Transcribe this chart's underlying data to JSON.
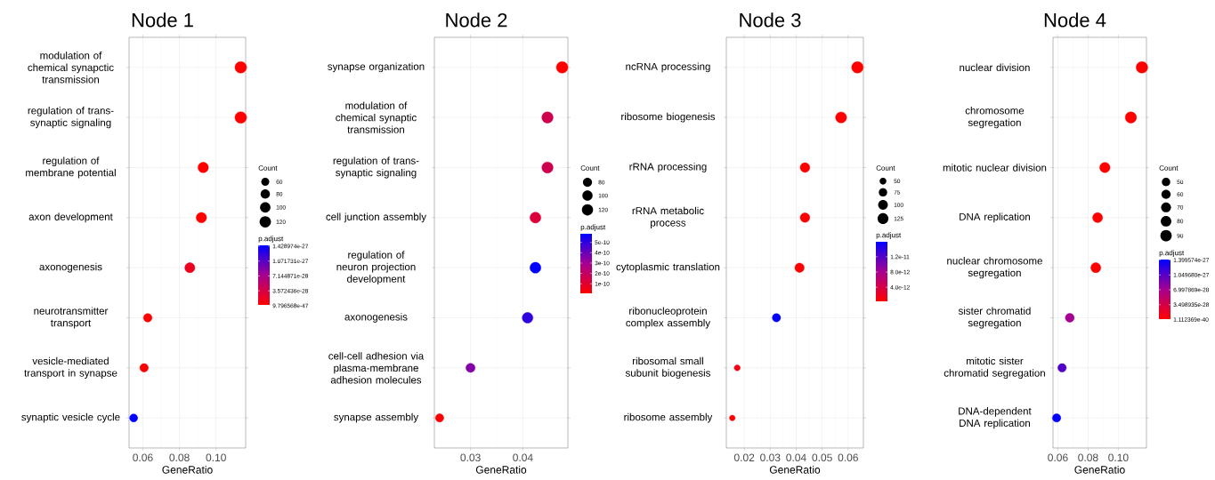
{
  "chart_data": [
    {
      "type": "bubble",
      "orientation": "horizontal",
      "title": "Node 1",
      "xlabel": "GeneRatio",
      "legend_title": "Count",
      "clabel": "p.adjust",
      "grid": true,
      "marker": "circle",
      "categories": [
        "modulation of chemical synapctic transmission",
        "regulation of trans-synaptic signaling",
        "regulation of membrane potential",
        "axon development",
        "axonogenesis",
        "neurotransmitter transport",
        "vesicle-mediated transport in synapse",
        "synaptic vesicle cycle"
      ],
      "values": [
        0.1135,
        0.1135,
        0.093,
        0.092,
        0.0857,
        0.0627,
        0.0607,
        0.055
      ],
      "sizes": [
        124,
        124,
        101,
        100,
        93,
        68,
        66,
        60
      ],
      "cvalues": [
        9.796568e-47,
        1e-45,
        1e-35,
        1e-38,
        1.4e-28,
        1e-30,
        1e-29,
        1.428974e-27
      ],
      "size_legend": [
        60,
        80,
        100,
        120
      ],
      "xlim": [
        0.0525,
        0.1162
      ],
      "xticks": [
        0.06,
        0.08,
        {
          "value": 0.1,
          "label": "0.10"
        }
      ],
      "clim": [
        9.796568e-47,
        1.428974e-27
      ],
      "cticks": [
        {
          "value": 9.796568e-47,
          "label": "9.796568e-47"
        },
        {
          "value": 3.572436e-28,
          "label": "3.572436e-28"
        },
        {
          "value": 7.144871e-28,
          "label": "7.144871e-28"
        },
        {
          "value": 1.071731e-27,
          "label": "1.071731e-27"
        },
        {
          "value": 1.428974e-27,
          "label": "1.428974e-27"
        }
      ]
    },
    {
      "type": "bubble",
      "orientation": "horizontal",
      "title": "Node 2",
      "xlabel": "GeneRatio",
      "legend_title": "Count",
      "clabel": "p.adjust",
      "grid": true,
      "marker": "circle",
      "categories": [
        "synapse organization",
        "modulation of chemical synaptic transmission",
        "regulation of trans-synaptic signaling",
        "cell junction assembly",
        "regulation of neuron projection development",
        "axonogenesis",
        "cell-cell adhesion via plasma-membrane adhesion molecules",
        "synapse assembly"
      ],
      "values": [
        0.0475,
        0.0447,
        0.0447,
        0.0424,
        0.0424,
        0.0409,
        0.03,
        0.0241
      ],
      "sizes": [
        128,
        121,
        121,
        114,
        114,
        110,
        81,
        65
      ],
      "cvalues": [
        5e-12,
        1.6e-10,
        1.6e-10,
        1.2e-10,
        5.8e-10,
        5e-10,
        3.5e-10,
        1e-11
      ],
      "size_legend": [
        80,
        100,
        120
      ],
      "xlim": [
        0.0231,
        0.0486
      ],
      "xticks": [
        0.03,
        0.04
      ],
      "clim": [
        5e-12,
        5.8e-10
      ],
      "cticks": [
        {
          "value": 1e-10,
          "label": "1e-10"
        },
        {
          "value": 2e-10,
          "label": "2e-10"
        },
        {
          "value": 3e-10,
          "label": "3e-10"
        },
        {
          "value": 4e-10,
          "label": "4e-10"
        },
        {
          "value": 5e-10,
          "label": "5e-10"
        }
      ]
    },
    {
      "type": "bubble",
      "orientation": "horizontal",
      "title": "Node 3",
      "xlabel": "GeneRatio",
      "legend_title": "Count",
      "clabel": "p.adjust",
      "grid": true,
      "marker": "circle",
      "categories": [
        "ncRNA processing",
        "ribosome biogenesis",
        "rRNA processing",
        "rRNA metabolic process",
        "cytoplasmic translation",
        "ribonucleoprotein complex assembly",
        "ribosomal small subunit biogenesis",
        "ribosome assembly"
      ],
      "values": [
        0.0636,
        0.0573,
        0.0434,
        0.0434,
        0.0413,
        0.0324,
        0.0173,
        0.0154
      ],
      "sizes": [
        144,
        130,
        99,
        99,
        94,
        74,
        39,
        35
      ],
      "cvalues": [
        1e-13,
        2e-13,
        3e-13,
        3e-13,
        2e-13,
        1.57e-11,
        1e-12,
        3e-13
      ],
      "size_legend": [
        50,
        75,
        100,
        125
      ],
      "xlim": [
        0.0131,
        0.0659
      ],
      "xticks": [
        0.02,
        0.03,
        0.04,
        0.05,
        0.06
      ],
      "clim": [
        1e-13,
        1.57e-11
      ],
      "cticks": [
        {
          "value": 4e-12,
          "label": "4.0e-12"
        },
        {
          "value": 8e-12,
          "label": "8.0e-12"
        },
        {
          "value": 1.2e-11,
          "label": "1.2e-11"
        }
      ]
    },
    {
      "type": "bubble",
      "orientation": "horizontal",
      "title": "Node 4",
      "xlabel": "GeneRatio",
      "legend_title": "Count",
      "clabel": "p.adjust",
      "grid": true,
      "marker": "circle",
      "categories": [
        "nuclear division",
        "chromosome segregation",
        "mitotic nuclear division",
        "DNA replication",
        "nuclear chromosome segregation",
        "sister chromatid segregation",
        "mitotic sister chromatid segregation",
        "DNA-dependent DNA replication"
      ],
      "values": [
        0.1156,
        0.1083,
        0.0911,
        0.0863,
        0.0851,
        0.0679,
        0.0628,
        0.0592
      ],
      "sizes": [
        95,
        89,
        75,
        71,
        70,
        56,
        51,
        49
      ],
      "cvalues": [
        1.112369e-40,
        1e-38,
        1e-35,
        1e-33,
        1e-31,
        7e-28,
        1.05e-27,
        1.399574e-27
      ],
      "size_legend": [
        50,
        60,
        70,
        80,
        90
      ],
      "xlim": [
        0.0568,
        0.1186
      ],
      "xticks": [
        0.06,
        0.08,
        {
          "value": 0.1,
          "label": "0.10"
        }
      ],
      "clim": [
        1.112369e-40,
        1.399574e-27
      ],
      "cticks": [
        {
          "value": 1.112369e-40,
          "label": "1.112369e-40"
        },
        {
          "value": 3.498935e-28,
          "label": "3.498935e-28"
        },
        {
          "value": 6.997869e-28,
          "label": "6.997869e-28"
        },
        {
          "value": 1.04968e-27,
          "label": "1.049680e-27"
        },
        {
          "value": 1.399574e-27,
          "label": "1.399574e-27"
        }
      ]
    }
  ]
}
